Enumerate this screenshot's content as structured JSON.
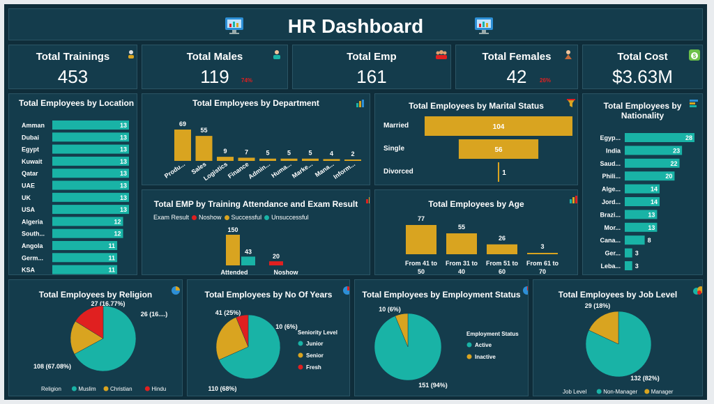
{
  "header": {
    "title": "HR Dashboard"
  },
  "kpis": [
    {
      "title": "Total Trainings",
      "value": "453",
      "pct": ""
    },
    {
      "title": "Total Males",
      "value": "119",
      "pct": "74%"
    },
    {
      "title": "Total Emp",
      "value": "161",
      "pct": ""
    },
    {
      "title": "Total Females",
      "value": "42",
      "pct": "26%"
    },
    {
      "title": "Total Cost",
      "value": "$3.63M",
      "pct": ""
    }
  ],
  "colors": {
    "teal": "#19b3a6",
    "gold": "#d9a420",
    "red": "#e02020",
    "panel": "#143c4c",
    "bg": "#0f2d3a"
  },
  "chart_data": [
    {
      "type": "bar",
      "orientation": "horizontal",
      "title": "Total Employees by Location",
      "categories": [
        "Amman",
        "Dubai",
        "Egypt",
        "Kuwait",
        "Qatar",
        "UAE",
        "UK",
        "USA",
        "Algeria",
        "South...",
        "Angola",
        "Germ...",
        "KSA"
      ],
      "values": [
        13,
        13,
        13,
        13,
        13,
        13,
        13,
        13,
        12,
        12,
        11,
        11,
        11
      ],
      "color": "#19b3a6"
    },
    {
      "type": "bar",
      "title": "Total Employees by Department",
      "categories": [
        "Produ...",
        "Sales",
        "Logistics",
        "Finance",
        "Admin...",
        "Huma...",
        "Marke...",
        "Mana...",
        "Inform..."
      ],
      "values": [
        69,
        55,
        9,
        7,
        5,
        5,
        5,
        4,
        2
      ],
      "color": "#d9a420"
    },
    {
      "type": "bar",
      "orientation": "horizontal",
      "title": "Total Employees by Marital Status",
      "categories": [
        "Married",
        "Single",
        "Divorced"
      ],
      "values": [
        104,
        56,
        1
      ],
      "color": "#d9a420"
    },
    {
      "type": "bar",
      "orientation": "horizontal",
      "title": "Total Employees by Nationality",
      "categories": [
        "Egyp...",
        "India",
        "Saud...",
        "Phili...",
        "Alge...",
        "Jord...",
        "Brazi...",
        "Mor...",
        "Cana...",
        "Ger...",
        "Leba..."
      ],
      "values": [
        28,
        23,
        22,
        20,
        14,
        14,
        13,
        13,
        8,
        3,
        3
      ],
      "color": "#19b3a6"
    },
    {
      "type": "bar",
      "title": "Total EMP by Training Attendance and Exam Result",
      "legend_title": "Exam Result",
      "categories": [
        "Attended",
        "Noshow"
      ],
      "series": [
        {
          "name": "Noshow",
          "values": [
            null,
            20
          ],
          "color": "#e02020"
        },
        {
          "name": "Successful",
          "values": [
            150,
            null
          ],
          "color": "#d9a420"
        },
        {
          "name": "Unsuccessful",
          "values": [
            43,
            null
          ],
          "color": "#19b3a6"
        }
      ]
    },
    {
      "type": "bar",
      "title": "Total Employees by Age",
      "categories": [
        "From 41 to 50",
        "From 31 to 40",
        "From 51 to 60",
        "From 61 to 70"
      ],
      "values": [
        77,
        55,
        26,
        3
      ],
      "color": "#d9a420"
    },
    {
      "type": "pie",
      "title": "Total Employees by Religion",
      "legend_title": "Religion",
      "slices": [
        {
          "name": "Muslim",
          "value": 108,
          "label": "108 (67.08%)",
          "color": "#19b3a6"
        },
        {
          "name": "Christian",
          "value": 27,
          "label": "27 (16.77%)",
          "color": "#d9a420"
        },
        {
          "name": "Hindu",
          "value": 26,
          "label": "26 (16....)",
          "color": "#e02020"
        }
      ]
    },
    {
      "type": "pie",
      "title": "Total Employees by No Of Years",
      "legend_title": "Seniority Level",
      "slices": [
        {
          "name": "Junior",
          "value": 110,
          "label": "110 (68%)",
          "color": "#19b3a6"
        },
        {
          "name": "Senior",
          "value": 41,
          "label": "41 (25%)",
          "color": "#d9a420"
        },
        {
          "name": "Fresh",
          "value": 10,
          "label": "10 (6%)",
          "color": "#e02020"
        }
      ]
    },
    {
      "type": "pie",
      "title": "Total Employees by Employment Status",
      "legend_title": "Employment Status",
      "slices": [
        {
          "name": "Active",
          "value": 151,
          "label": "151 (94%)",
          "color": "#19b3a6"
        },
        {
          "name": "Inactive",
          "value": 10,
          "label": "10 (6%)",
          "color": "#d9a420"
        }
      ]
    },
    {
      "type": "pie",
      "title": "Total Employees by Job Level",
      "legend_title": "Job Level",
      "slices": [
        {
          "name": "Non-Manager",
          "value": 132,
          "label": "132 (82%)",
          "color": "#19b3a6"
        },
        {
          "name": "Manager",
          "value": 29,
          "label": "29 (18%)",
          "color": "#d9a420"
        }
      ]
    }
  ]
}
